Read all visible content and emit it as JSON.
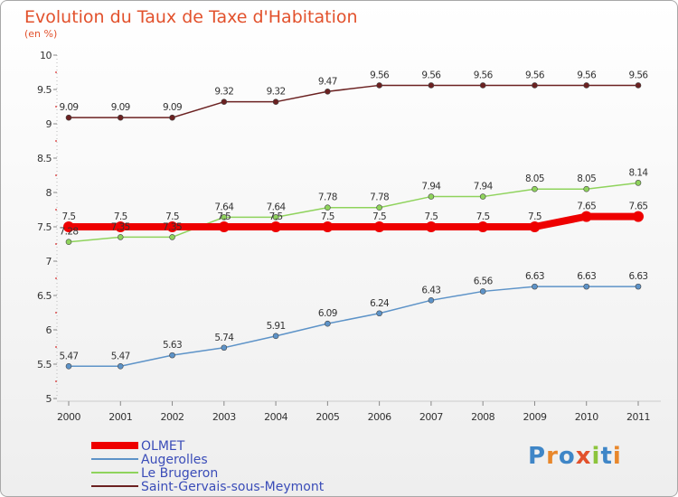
{
  "logo": {
    "letters": [
      "P",
      "r",
      "o",
      "x",
      "i",
      "t",
      "i"
    ],
    "colors": [
      "#3f86c7",
      "#e8872b",
      "#3f86c7",
      "#e2512c",
      "#8cc43c",
      "#3f86c7",
      "#e8872b"
    ]
  },
  "chart_data": {
    "type": "line",
    "title": "Evolution du Taux de Taxe d'Habitation",
    "subtitle": "(en %)",
    "xlabel": "",
    "ylabel": "",
    "x": [
      "2000",
      "2001",
      "2002",
      "2003",
      "2004",
      "2005",
      "2006",
      "2007",
      "2008",
      "2009",
      "2010",
      "2011"
    ],
    "ylim": [
      5,
      10
    ],
    "yticks": [
      "5",
      "5.5",
      "6",
      "6.5",
      "7",
      "7.5",
      "8",
      "8.5",
      "9",
      "9.5",
      "10"
    ],
    "grid": false,
    "legend_position": "bottom-left",
    "series": [
      {
        "name": "Saint-Gervais-sous-Meymont",
        "color": "#6b2121",
        "line_width": 1.5,
        "marker_radius": 3,
        "values": [
          9.09,
          9.09,
          9.09,
          9.32,
          9.32,
          9.47,
          9.56,
          9.56,
          9.56,
          9.56,
          9.56,
          9.56
        ],
        "labels": [
          "9.09",
          "9.09",
          "9.09",
          "9.32",
          "9.32",
          "9.47",
          "9.56",
          "9.56",
          "9.56",
          "9.56",
          "9.56",
          "9.56"
        ]
      },
      {
        "name": "Le Brugeron",
        "color": "#8fd35c",
        "line_width": 1.5,
        "marker_radius": 3,
        "values": [
          7.28,
          7.35,
          7.35,
          7.64,
          7.64,
          7.78,
          7.78,
          7.94,
          7.94,
          8.05,
          8.05,
          8.14
        ],
        "labels": [
          "7.28",
          "7.35",
          "7.35",
          "7.64",
          "7.64",
          "7.78",
          "7.78",
          "7.94",
          "7.94",
          "8.05",
          "8.05",
          "8.14"
        ]
      },
      {
        "name": "Augerolles",
        "color": "#5d93c8",
        "line_width": 1.5,
        "marker_radius": 3,
        "values": [
          5.47,
          5.47,
          5.63,
          5.74,
          5.91,
          6.09,
          6.24,
          6.43,
          6.56,
          6.63,
          6.63,
          6.63
        ],
        "labels": [
          "5.47",
          "5.47",
          "5.63",
          "5.74",
          "5.91",
          "6.09",
          "6.24",
          "6.43",
          "6.56",
          "6.63",
          "6.63",
          "6.63"
        ]
      },
      {
        "name": "OLMET",
        "color": "#ee0000",
        "line_width": 8,
        "marker_radius": 6,
        "values": [
          7.5,
          7.5,
          7.5,
          7.5,
          7.5,
          7.5,
          7.5,
          7.5,
          7.5,
          7.5,
          7.65,
          7.65
        ],
        "labels": [
          "7.5",
          "7.5",
          "7.5",
          "7.5",
          "7.5",
          "7.5",
          "7.5",
          "7.5",
          "7.5",
          "7.5",
          "7.65",
          "7.65"
        ]
      }
    ],
    "legend_order": [
      "OLMET",
      "Augerolles",
      "Le Brugeron",
      "Saint-Gervais-sous-Meymont"
    ]
  }
}
